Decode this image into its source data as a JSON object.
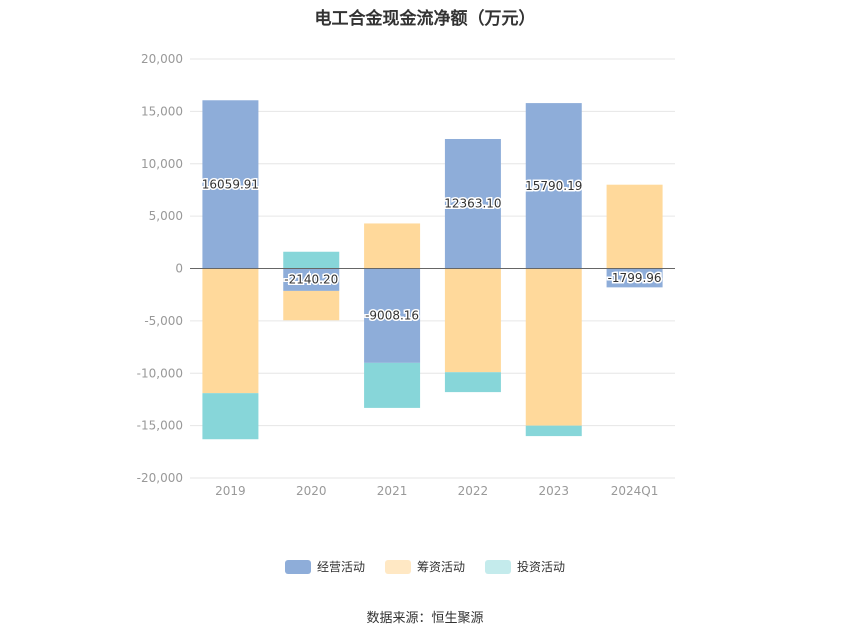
{
  "chart_data": {
    "type": "bar",
    "stacked": true,
    "title": "电工合金现金流净额（万元）",
    "categories": [
      "2019",
      "2020",
      "2021",
      "2022",
      "2023",
      "2024Q1"
    ],
    "series": [
      {
        "name": "经营活动",
        "color": "#8eadd9",
        "values": [
          16059.91,
          -2140.2,
          -9008.16,
          12363.1,
          15790.19,
          -1799.96
        ],
        "labels": [
          "16059.91",
          "-2140.20",
          "-9008.16",
          "12363.10",
          "15790.19",
          "-1799.96"
        ]
      },
      {
        "name": "筹资活动",
        "color": "#ffd99b",
        "values": [
          -11900,
          -2800,
          4300,
          -9900,
          -15000,
          8000
        ]
      },
      {
        "name": "投资活动",
        "color": "#87d6d9",
        "values": [
          -4400,
          1600,
          -4300,
          -1900,
          -1000,
          0
        ]
      }
    ],
    "ylim": [
      -20000,
      20000
    ],
    "yticks": [
      20000,
      15000,
      10000,
      5000,
      0,
      -5000,
      -10000,
      -15000,
      -20000
    ],
    "ytick_labels": [
      "20,000",
      "15,000",
      "10,000",
      "5,000",
      "0",
      "-5,000",
      "-10,000",
      "-15,000",
      "-20,000"
    ],
    "legend_position": "bottom-center",
    "grid": true
  },
  "legend": [
    {
      "label": "经营活动",
      "color": "#8eadd9"
    },
    {
      "label": "筹资活动",
      "color": "#ffe8c4"
    },
    {
      "label": "投资活动",
      "color": "#c4ebec"
    }
  ],
  "source": "数据来源：恒生聚源"
}
